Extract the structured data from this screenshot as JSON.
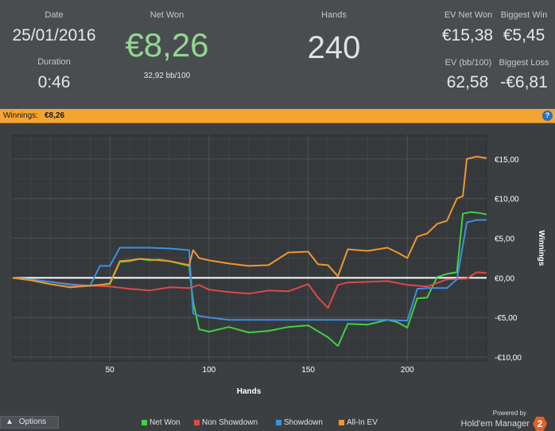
{
  "stats": {
    "date_label": "Date",
    "date_value": "25/01/2016",
    "duration_label": "Duration",
    "duration_value": "0:46",
    "net_won_label": "Net Won",
    "net_won_value": "€8,26",
    "bb100": "32,92 bb/100",
    "hands_label": "Hands",
    "hands_value": "240",
    "ev_net_won_label": "EV Net Won",
    "ev_net_won_value": "€15,38",
    "biggest_win_label": "Biggest Win",
    "biggest_win_value": "€5,45",
    "ev_bb100_label": "EV (bb/100)",
    "ev_bb100_value": "62,58",
    "biggest_loss_label": "Biggest Loss",
    "biggest_loss_value": "-€6,81"
  },
  "banner": {
    "label": "Winnings:",
    "value": "€8,26",
    "help": "?"
  },
  "footer": {
    "options_label": "Options",
    "powered_by": "Powered by",
    "brand": "Hold'em Manager",
    "brand_version": "2"
  },
  "colors": {
    "net_won": "#3fd23f",
    "non_showdown": "#e04848",
    "showdown": "#3f8fe0",
    "all_in_ev": "#f0962e"
  },
  "chart_data": {
    "type": "line",
    "xlabel": "Hands",
    "ylabel": "Winnings",
    "xlim": [
      1,
      240
    ],
    "ylim": [
      -10.5,
      18
    ],
    "xticks": [
      50,
      100,
      150,
      200
    ],
    "yticks": [
      15,
      10,
      5,
      0,
      -5,
      -10
    ],
    "ytick_labels": [
      "€15,00",
      "€10,00",
      "€5,00",
      "€0,00",
      "-€5,00",
      "-€10,00"
    ],
    "legend_position": "bottom",
    "zero_line": true,
    "series": [
      {
        "name": "Net Won",
        "color": "#3fd23f",
        "x": [
          1,
          10,
          20,
          30,
          40,
          45,
          50,
          55,
          60,
          65,
          70,
          75,
          80,
          85,
          90,
          92,
          95,
          100,
          110,
          120,
          130,
          140,
          150,
          160,
          165,
          170,
          180,
          190,
          195,
          200,
          205,
          210,
          215,
          220,
          225,
          228,
          232,
          236,
          240
        ],
        "y": [
          0,
          -0.3,
          -0.8,
          -1.2,
          -1.0,
          -0.9,
          -0.8,
          2.0,
          2.1,
          2.4,
          2.2,
          2.3,
          2.1,
          1.8,
          1.5,
          -3.0,
          -6.5,
          -6.8,
          -6.2,
          -6.9,
          -6.7,
          -6.2,
          -6.0,
          -7.5,
          -8.6,
          -5.8,
          -5.9,
          -5.3,
          -5.6,
          -6.3,
          -2.6,
          -2.5,
          0.1,
          0.5,
          0.7,
          8.1,
          8.3,
          8.2,
          8.0
        ]
      },
      {
        "name": "Non Showdown",
        "color": "#e04848",
        "x": [
          1,
          10,
          20,
          30,
          40,
          50,
          60,
          70,
          80,
          90,
          95,
          100,
          110,
          120,
          130,
          140,
          150,
          155,
          160,
          165,
          170,
          180,
          190,
          200,
          210,
          220,
          230,
          235,
          240
        ],
        "y": [
          0,
          -0.2,
          -0.5,
          -0.8,
          -1.0,
          -1.1,
          -1.4,
          -1.6,
          -1.2,
          -1.3,
          -0.9,
          -1.5,
          -1.8,
          -2.0,
          -1.6,
          -1.7,
          -0.8,
          -2.5,
          -3.8,
          -0.9,
          -0.6,
          -0.5,
          -0.4,
          -0.9,
          -1.1,
          -0.2,
          -0.1,
          0.7,
          0.6
        ]
      },
      {
        "name": "Showdown",
        "color": "#3f8fe0",
        "x": [
          1,
          10,
          20,
          30,
          40,
          45,
          50,
          55,
          60,
          70,
          80,
          90,
          92,
          95,
          100,
          110,
          120,
          130,
          140,
          150,
          160,
          170,
          180,
          190,
          200,
          205,
          210,
          215,
          220,
          225,
          230,
          235,
          240
        ],
        "y": [
          0,
          -0.2,
          -0.5,
          -0.9,
          -1.0,
          1.5,
          1.5,
          3.8,
          3.8,
          3.8,
          3.7,
          3.5,
          -4.5,
          -4.8,
          -5.0,
          -5.3,
          -5.3,
          -5.3,
          -5.3,
          -5.3,
          -5.3,
          -5.3,
          -5.3,
          -5.3,
          -5.4,
          -1.4,
          -1.3,
          -1.3,
          -1.3,
          -0.2,
          7.0,
          7.3,
          7.3
        ]
      },
      {
        "name": "All-In EV",
        "color": "#f0962e",
        "x": [
          1,
          10,
          20,
          30,
          40,
          45,
          50,
          55,
          60,
          65,
          70,
          80,
          90,
          92,
          95,
          100,
          110,
          120,
          130,
          140,
          150,
          155,
          160,
          165,
          170,
          180,
          190,
          195,
          200,
          205,
          210,
          215,
          220,
          225,
          228,
          230,
          235,
          240
        ],
        "y": [
          0,
          -0.3,
          -0.8,
          -1.2,
          -1.0,
          -0.9,
          -0.7,
          2.1,
          2.2,
          2.4,
          2.3,
          2.1,
          1.6,
          3.5,
          2.5,
          2.2,
          1.8,
          1.5,
          1.6,
          3.2,
          3.3,
          1.7,
          1.6,
          0.2,
          3.6,
          3.4,
          3.8,
          3.2,
          2.5,
          5.2,
          5.6,
          6.8,
          7.2,
          10.0,
          10.3,
          15.0,
          15.3,
          15.1
        ]
      }
    ]
  }
}
